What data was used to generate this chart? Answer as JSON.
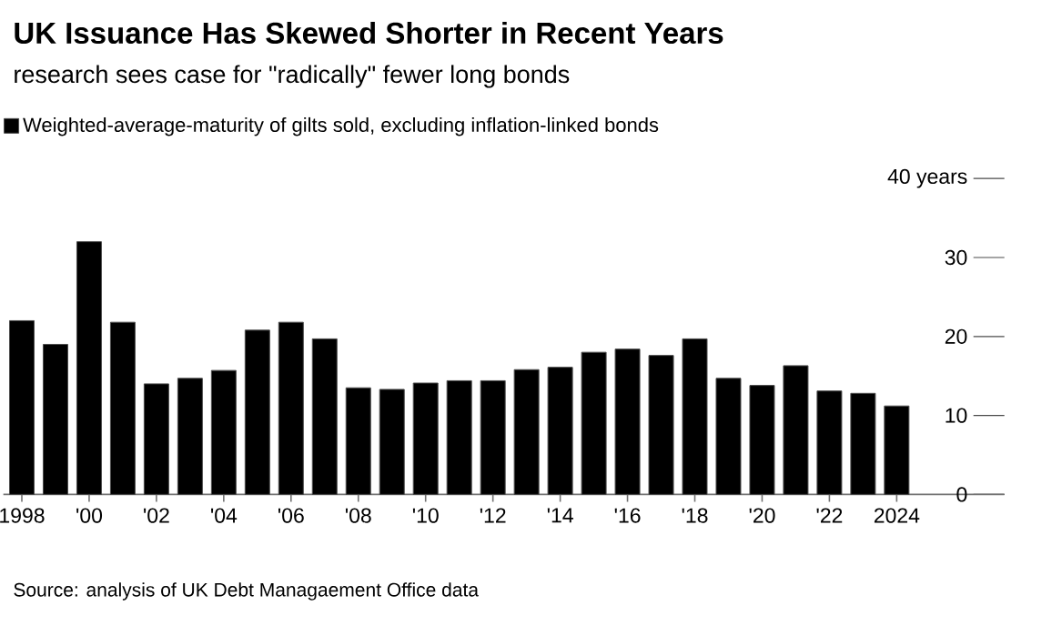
{
  "chart_data": {
    "type": "bar",
    "title": "UK Issuance Has Skewed Shorter in Recent Years",
    "subtitle": "research sees case for \"radically\" fewer long bonds",
    "annotations": [
      "Source: analysis of UK Debt Managaement Office data"
    ],
    "categories": [
      "1998",
      null,
      "'00",
      null,
      "'02",
      null,
      "'04",
      null,
      "'06",
      null,
      "'08",
      null,
      "'10",
      null,
      "'12",
      null,
      "'14",
      null,
      "'16",
      null,
      "'18",
      null,
      "'20",
      null,
      "'22",
      null,
      "2024"
    ],
    "series": [
      {
        "name": "Weighted-average-maturity of gilts sold, excluding inflation-linked bonds",
        "color": "#000000",
        "values": [
          22.0,
          19.0,
          32.0,
          21.8,
          14.0,
          14.7,
          15.7,
          20.8,
          21.8,
          19.7,
          13.5,
          13.3,
          14.1,
          14.4,
          14.4,
          15.8,
          16.1,
          18.0,
          18.4,
          17.6,
          19.7,
          14.7,
          13.8,
          16.3,
          13.1,
          12.8,
          11.2
        ]
      }
    ],
    "ylim": [
      0,
      40
    ],
    "yticks": [
      0,
      10,
      20,
      30,
      {
        "value": 40,
        "label": "40 years"
      }
    ],
    "legend": "top left"
  }
}
